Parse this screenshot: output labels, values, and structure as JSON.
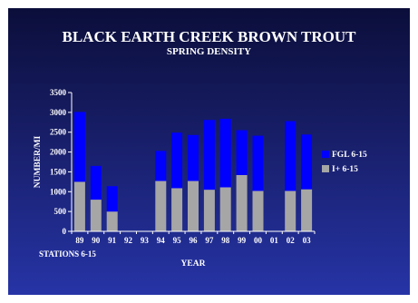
{
  "header": {
    "title": "BLACK EARTH CREEK BROWN TROUT",
    "subtitle": "SPRING DENSITY"
  },
  "footer": {
    "note": "STATIONS 6-15"
  },
  "colors": {
    "fgl": "#0000ff",
    "i_plus": "#a6a6a6",
    "axis": "#ffffff"
  },
  "chart_data": {
    "type": "bar",
    "stacked": true,
    "title": "BLACK EARTH CREEK BROWN TROUT",
    "subtitle": "SPRING DENSITY",
    "xlabel": "YEAR",
    "ylabel": "NUMBER/MI",
    "ylim": [
      0,
      3500
    ],
    "yticks": [
      0,
      500,
      1000,
      1500,
      2000,
      2500,
      3000,
      3500
    ],
    "categories": [
      "89",
      "90",
      "91",
      "92",
      "93",
      "94",
      "95",
      "96",
      "97",
      "98",
      "99",
      "00",
      "01",
      "02",
      "03"
    ],
    "series": [
      {
        "name": "I+ 6-15",
        "color": "#a6a6a6",
        "values": [
          1250,
          800,
          500,
          null,
          null,
          1270,
          1090,
          1270,
          1050,
          1110,
          1420,
          1020,
          null,
          1020,
          1060
        ]
      },
      {
        "name": "FGL 6-15",
        "color": "#0000ff",
        "values": [
          1760,
          850,
          640,
          null,
          null,
          760,
          1400,
          1160,
          1760,
          1730,
          1130,
          1390,
          null,
          1760,
          1380
        ]
      }
    ],
    "legend": "right",
    "grid": false
  }
}
